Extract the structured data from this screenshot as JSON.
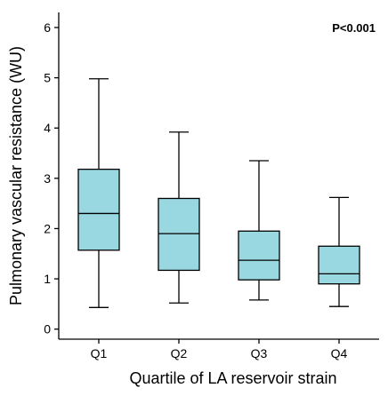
{
  "chart_data": {
    "type": "boxplot",
    "ylabel": "Pulmonary vascular resistance (WU)",
    "xlabel": "Quartile of LA reservoir strain",
    "ylim": [
      -0.2,
      6.3
    ],
    "yticks": [
      "0",
      "1",
      "2",
      "3",
      "4",
      "5",
      "6"
    ],
    "categories": [
      "Q1",
      "Q2",
      "Q3",
      "Q4"
    ],
    "boxes": [
      {
        "category": "Q1",
        "whisker_low": 0.43,
        "q1": 1.57,
        "median": 2.3,
        "q3": 3.18,
        "whisker_high": 4.98
      },
      {
        "category": "Q2",
        "whisker_low": 0.52,
        "q1": 1.17,
        "median": 1.9,
        "q3": 2.6,
        "whisker_high": 3.92
      },
      {
        "category": "Q3",
        "whisker_low": 0.58,
        "q1": 0.98,
        "median": 1.37,
        "q3": 1.95,
        "whisker_high": 3.35
      },
      {
        "category": "Q4",
        "whisker_low": 0.45,
        "q1": 0.9,
        "median": 1.1,
        "q3": 1.65,
        "whisker_high": 2.62
      }
    ],
    "annotation": "P<0.001",
    "box_color": "#99d8e0",
    "grid": false
  }
}
